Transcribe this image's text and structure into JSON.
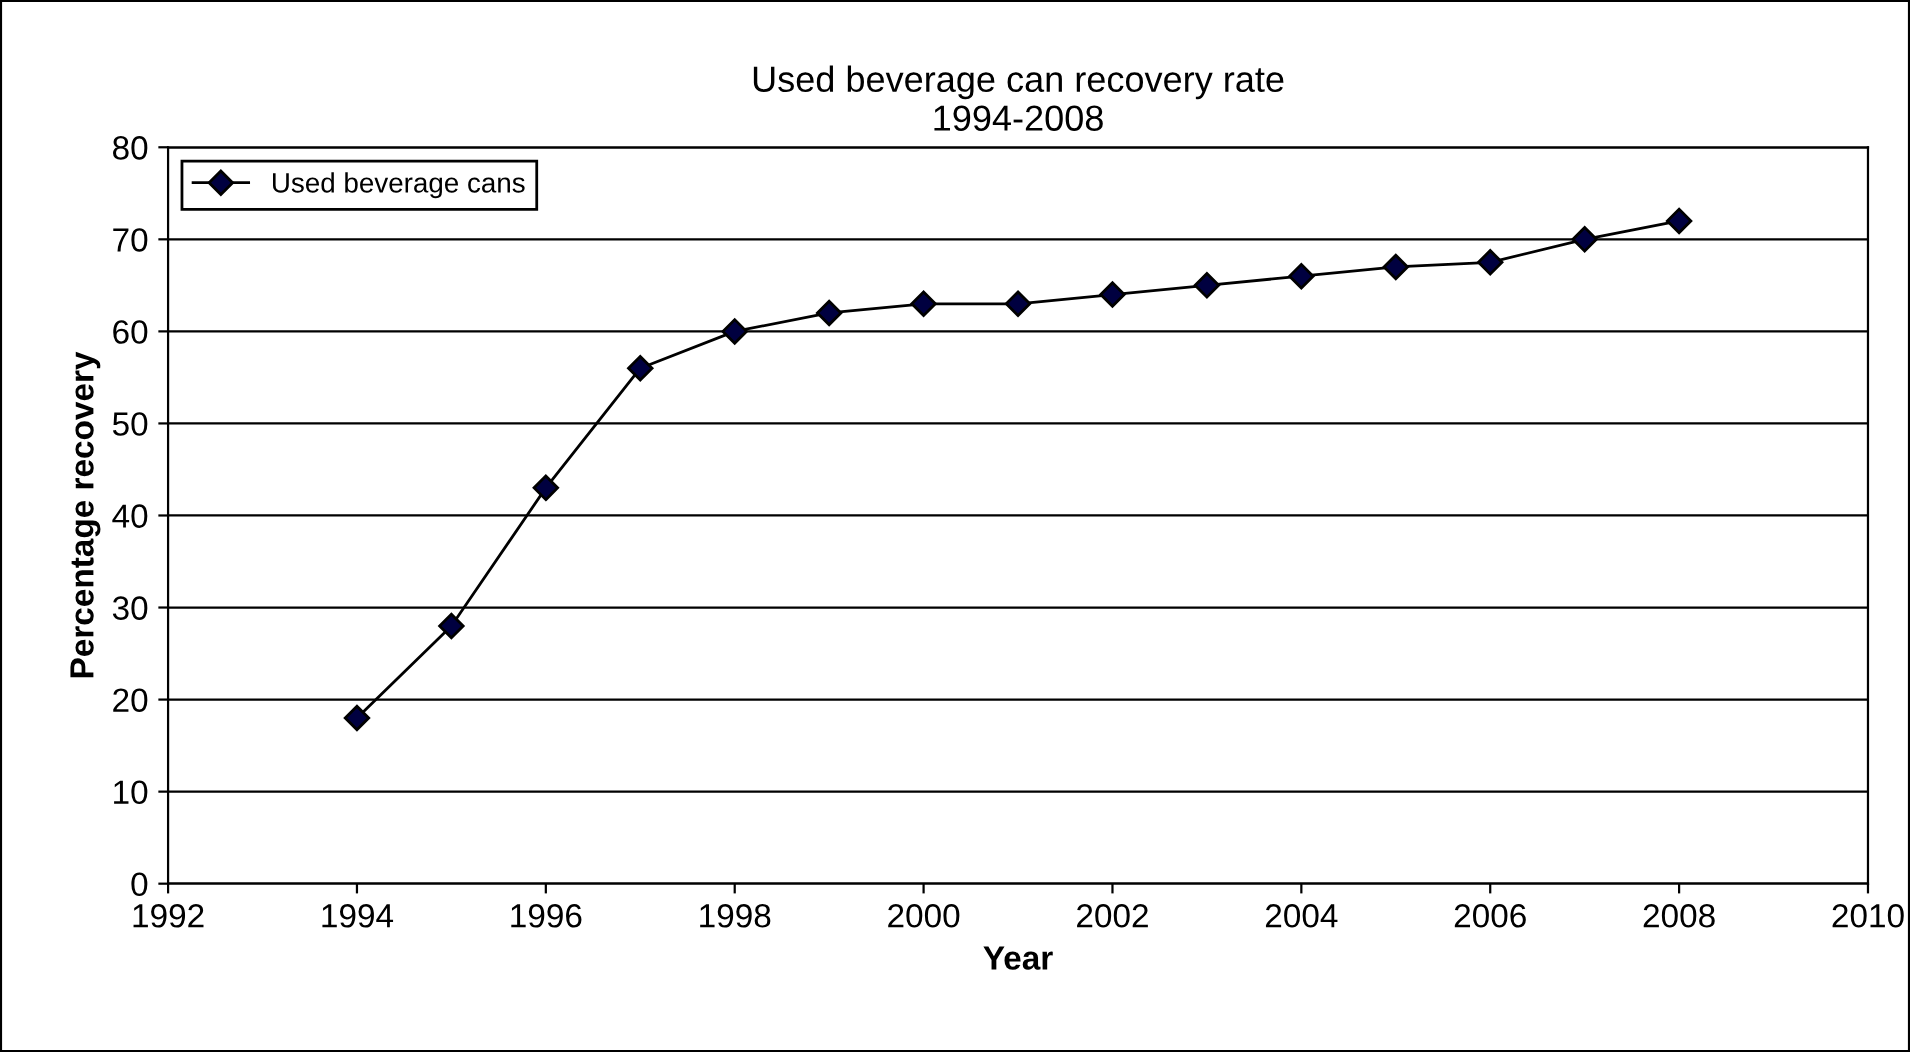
{
  "chart_data": {
    "type": "line",
    "title": "Used beverage can recovery rate\n1994-2008",
    "xlabel": "Year",
    "ylabel": "Percentage recovery",
    "x": [
      1994,
      1995,
      1996,
      1997,
      1998,
      1999,
      2000,
      2001,
      2002,
      2003,
      2004,
      2005,
      2006,
      2007,
      2008
    ],
    "series": [
      {
        "name": "Used beverage cans",
        "color": "#000040",
        "values": [
          18,
          28,
          43,
          56,
          60,
          62,
          63,
          63,
          64,
          65,
          66,
          67,
          67.5,
          70,
          72
        ]
      }
    ],
    "xlim": [
      1992,
      2010
    ],
    "xticks": [
      1992,
      1994,
      1996,
      1998,
      2000,
      2002,
      2004,
      2006,
      2008,
      2010
    ],
    "ylim": [
      0,
      80
    ],
    "yticks": [
      0,
      10,
      20,
      30,
      40,
      50,
      60,
      70,
      80
    ],
    "grid": "y",
    "legend": "top left",
    "marker": "diamond",
    "line_style": "solid"
  }
}
